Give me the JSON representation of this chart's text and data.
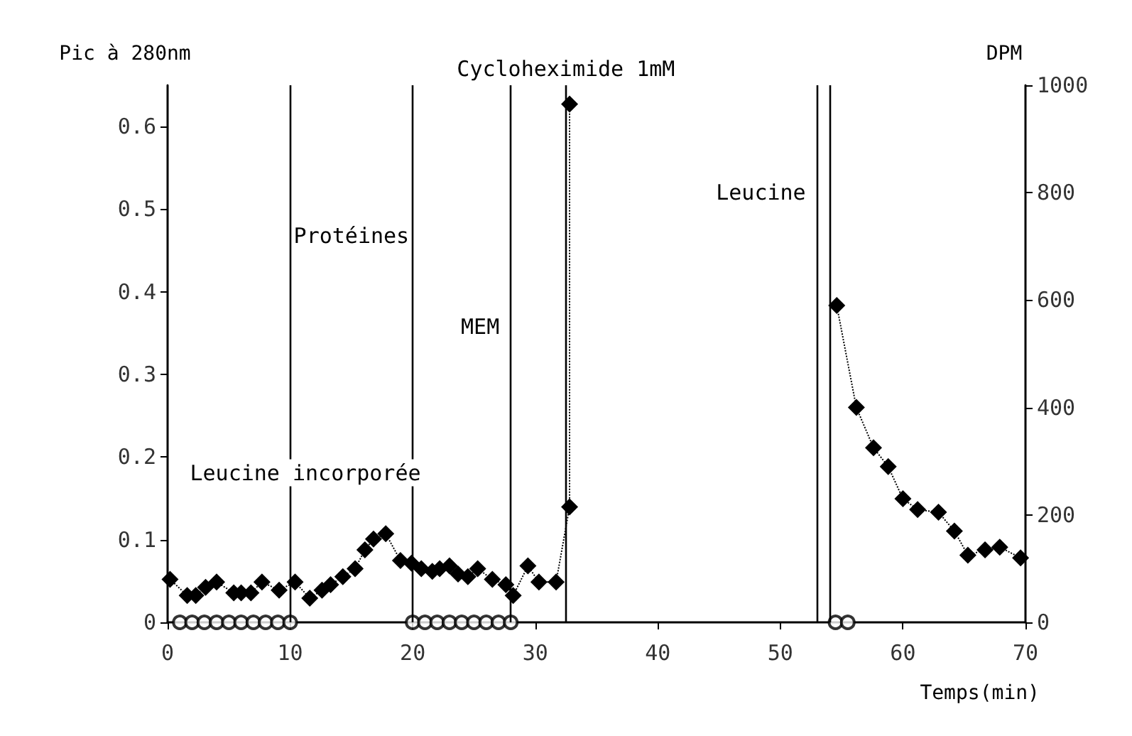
{
  "chart_data": {
    "type": "line",
    "xlabel": "Temps(min)",
    "ylabel": "Pic à 280nm",
    "y2label": "DPM",
    "xlim": [
      0,
      70
    ],
    "xticks": [
      0,
      10,
      20,
      30,
      40,
      50,
      60,
      70
    ],
    "ylim": [
      0,
      0.65
    ],
    "yticks": [
      0,
      0.1,
      0.2,
      0.3,
      0.4,
      0.5,
      0.6
    ],
    "y2lim": [
      0,
      1000
    ],
    "y2ticks": [
      0,
      200,
      400,
      600,
      800,
      1000
    ],
    "grid": false,
    "legend": false,
    "series": [
      {
        "name": "Leucine incorporée",
        "axis": "y2",
        "color": "#000000",
        "marker": "diamond",
        "line_style": "dotted",
        "x": [
          0.2,
          1.6,
          2.3,
          3.1,
          4.0,
          5.4,
          6.0,
          6.8,
          7.7,
          9.1,
          10.4,
          11.6,
          12.6,
          13.3,
          14.3,
          15.3,
          16.1,
          16.8,
          17.8,
          19.0,
          19.9,
          20.7,
          21.6,
          22.2,
          23.0,
          23.7,
          24.5,
          25.3,
          26.5,
          27.6,
          28.2,
          29.4,
          30.3,
          31.7,
          32.8,
          32.8,
          43,
          54.6,
          56.2,
          57.6,
          58.8,
          60.0,
          61.2,
          62.9,
          64.2,
          65.3,
          66.7,
          67.9,
          69.6
        ],
        "values": [
          80,
          50,
          50,
          65,
          75,
          55,
          55,
          55,
          75,
          60,
          75,
          45,
          60,
          70,
          85,
          100,
          135,
          155,
          165,
          115,
          110,
          100,
          95,
          100,
          105,
          90,
          85,
          100,
          80,
          70,
          50,
          105,
          75,
          75,
          215,
          965,
          null,
          590,
          400,
          325,
          290,
          230,
          210,
          205,
          170,
          125,
          135,
          140,
          120
        ]
      },
      {
        "type": "scatter",
        "axis": "y",
        "color": "#000000",
        "marker": "circle",
        "x": [
          1,
          2,
          3,
          4,
          5,
          6,
          7,
          8,
          9,
          10,
          20,
          21,
          22,
          23,
          24,
          25,
          26,
          27,
          28,
          54.5,
          55.5
        ],
        "values": [
          0,
          0,
          0,
          0,
          0,
          0,
          0,
          0,
          0,
          0,
          0,
          0,
          0,
          0,
          0,
          0,
          0,
          0,
          0,
          0,
          0
        ]
      }
    ],
    "ref_lines": [
      {
        "axis": "x",
        "value": 10
      },
      {
        "axis": "x",
        "value": 20
      },
      {
        "axis": "x",
        "value": 28,
        "label": "MEM"
      },
      {
        "axis": "x",
        "value": 32.5,
        "label": "Cycloheximide 1mM"
      },
      {
        "axis": "x",
        "value": 53,
        "label": "Leucine"
      },
      {
        "axis": "x",
        "value": 54
      }
    ],
    "annotations": [
      "Protéines"
    ]
  }
}
